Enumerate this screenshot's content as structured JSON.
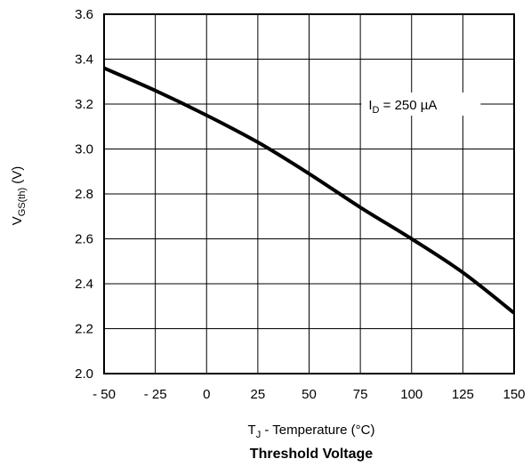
{
  "chart_data": {
    "type": "line",
    "title": "Threshold Voltage",
    "xlabel": {
      "main": "T",
      "sub": "J",
      "rest": " - Temperature (°C)"
    },
    "ylabel": {
      "main": "V",
      "sub": "GS(th)",
      "rest": "  (V)"
    },
    "xlim": [
      -50,
      150
    ],
    "ylim": [
      2.0,
      3.6
    ],
    "x_ticks": [
      -50,
      -25,
      0,
      25,
      50,
      75,
      100,
      125,
      150
    ],
    "x_tick_labels": [
      "- 50",
      "- 25",
      "0",
      "25",
      "50",
      "75",
      "100",
      "125",
      "150"
    ],
    "y_ticks": [
      2.0,
      2.2,
      2.4,
      2.6,
      2.8,
      3.0,
      3.2,
      3.4,
      3.6
    ],
    "y_tick_labels": [
      "2.0",
      "2.2",
      "2.4",
      "2.6",
      "2.8",
      "3.0",
      "3.2",
      "3.4",
      "3.6"
    ],
    "grid": true,
    "series": [
      {
        "x": [
          -50,
          -25,
          0,
          25,
          50,
          75,
          100,
          125,
          150
        ],
        "y": [
          3.36,
          3.26,
          3.15,
          3.03,
          2.89,
          2.74,
          2.6,
          2.45,
          2.27
        ]
      }
    ],
    "annotation": {
      "main": "I",
      "sub": "D",
      "rest": " = 250 µA",
      "x": 79,
      "y": 3.2
    },
    "colors": {
      "line": "#000000",
      "grid": "#000000",
      "background": "#ffffff"
    }
  }
}
